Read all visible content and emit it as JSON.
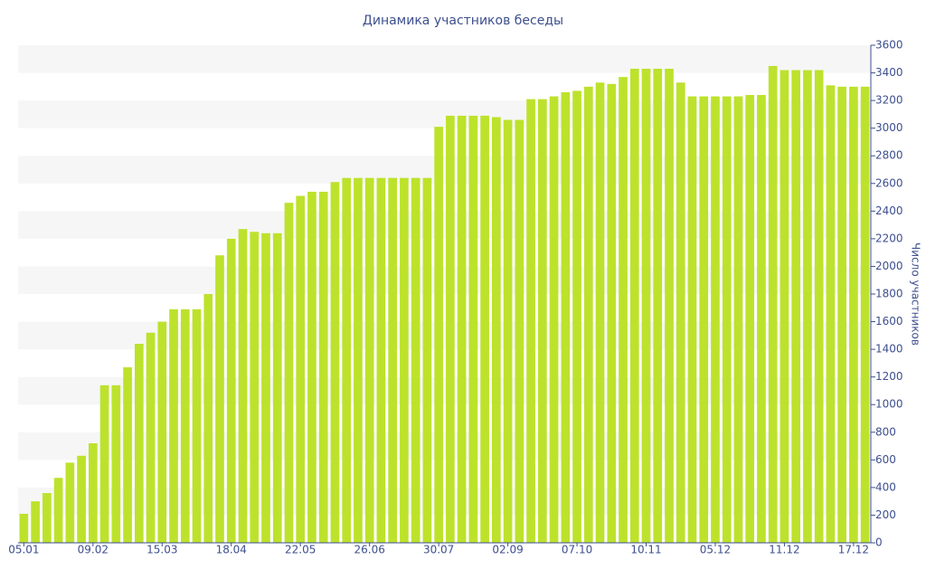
{
  "chart_data": {
    "type": "bar",
    "title": "Динамика участников беседы",
    "y_axis_label": "Число участников",
    "categories": [
      "05.01",
      null,
      null,
      null,
      null,
      null,
      "09.02",
      null,
      null,
      null,
      null,
      null,
      "15.03",
      null,
      null,
      null,
      null,
      null,
      "18.04",
      null,
      null,
      null,
      null,
      null,
      "22.05",
      null,
      null,
      null,
      null,
      null,
      "26.06",
      null,
      null,
      null,
      null,
      null,
      "30.07",
      null,
      null,
      null,
      null,
      null,
      "02.09",
      null,
      null,
      null,
      null,
      null,
      "07.10",
      null,
      null,
      null,
      null,
      null,
      "10.11",
      null,
      null,
      null,
      null,
      null,
      "05.12",
      null,
      null,
      null,
      null,
      null,
      "11.12",
      null,
      null,
      null,
      null,
      null,
      "17.12",
      null
    ],
    "values": [
      210,
      300,
      360,
      470,
      580,
      630,
      720,
      1140,
      1140,
      1270,
      1440,
      1520,
      1600,
      1690,
      1690,
      1690,
      1800,
      2080,
      2200,
      2270,
      2250,
      2240,
      2240,
      2460,
      2510,
      2540,
      2540,
      2610,
      2640,
      2640,
      2640,
      2640,
      2640,
      2640,
      2640,
      2640,
      3010,
      3090,
      3090,
      3090,
      3090,
      3080,
      3060,
      3060,
      3210,
      3210,
      3230,
      3260,
      3270,
      3300,
      3330,
      3320,
      3370,
      3430,
      3430,
      3430,
      3430,
      3330,
      3230,
      3230,
      3230,
      3230,
      3230,
      3240,
      3240,
      3450,
      3420,
      3420,
      3420,
      3420,
      3310,
      3300,
      3300,
      3300
    ],
    "color": "#bde22c",
    "ylim": [
      0,
      3600
    ],
    "yticks": [
      0,
      200,
      400,
      600,
      800,
      1000,
      1200,
      1400,
      1600,
      1800,
      2000,
      2200,
      2400,
      2600,
      2800,
      3000,
      3200,
      3400,
      3600
    ],
    "y_axis_side": "right",
    "striped_background": true
  }
}
